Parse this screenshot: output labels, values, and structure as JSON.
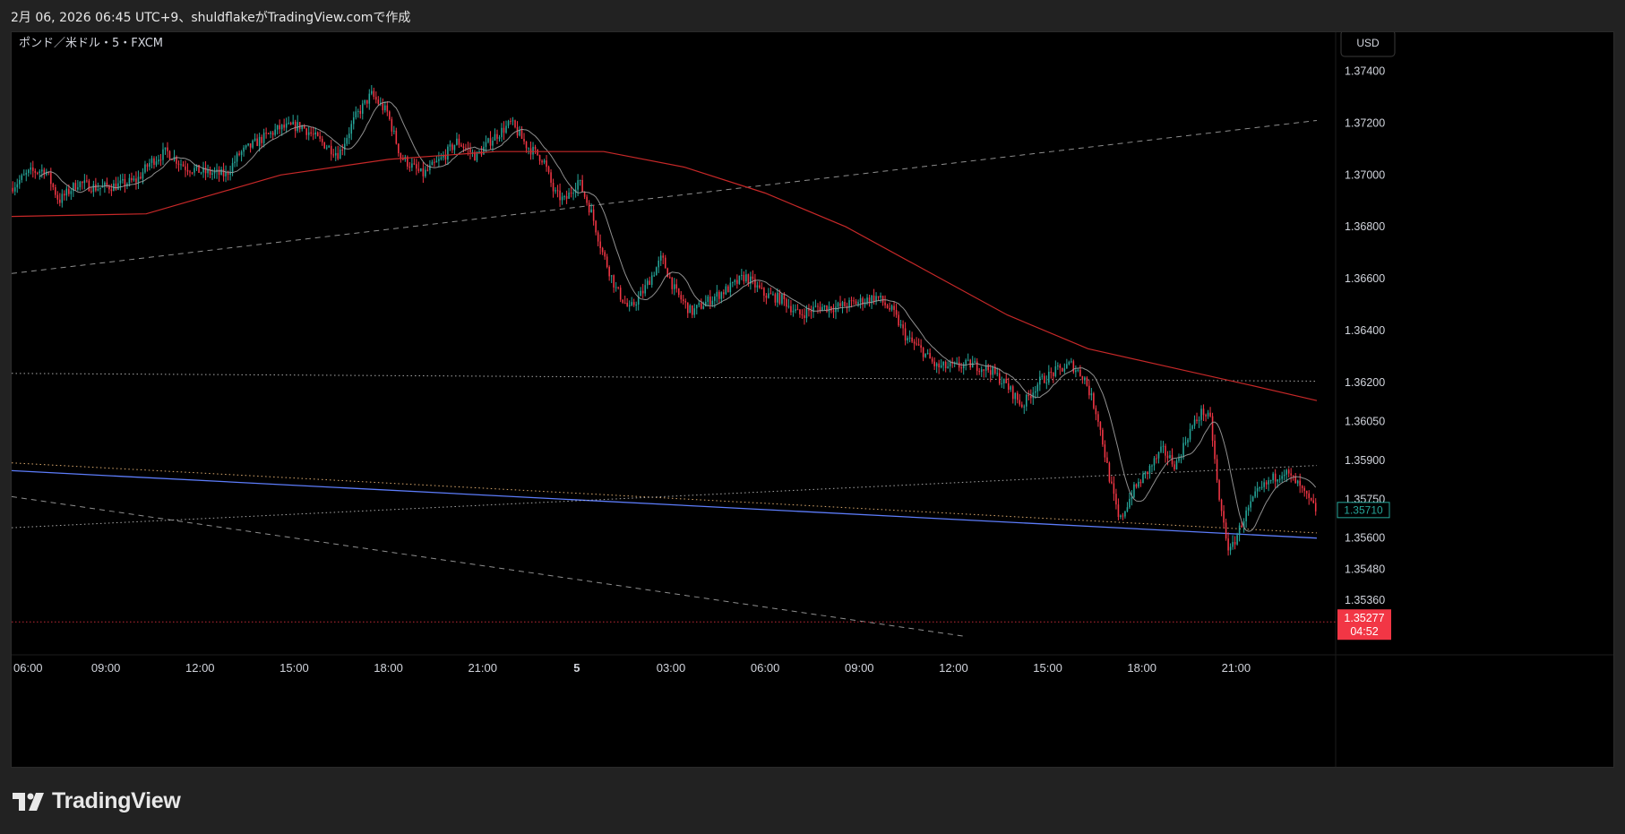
{
  "caption": "2月 06, 2026 06:45 UTC+9、shuldflakeがTradingView.comで作成",
  "footer": {
    "brand": "TradingView"
  },
  "colors": {
    "up": "#26a69a",
    "down": "#f23645",
    "ma_slow": "#c62828",
    "ma_fast": "#9e9e9e",
    "trend_blue": "#5c7cfa",
    "dashed": "#bdbdbd"
  },
  "chart_data": {
    "type": "candlestick",
    "title": "ポンド／米ドル・5・FXCM",
    "currency_button": "USD",
    "y_ticks": [
      "1.37400",
      "1.37200",
      "1.37000",
      "1.36800",
      "1.36600",
      "1.36400",
      "1.36200",
      "1.36050",
      "1.35900",
      "1.35750",
      "1.35600",
      "1.35480",
      "1.35360"
    ],
    "x_ticks": [
      "06:00",
      "09:00",
      "12:00",
      "15:00",
      "18:00",
      "21:00",
      "5",
      "03:00",
      "06:00",
      "09:00",
      "12:00",
      "15:00",
      "18:00",
      "21:00"
    ],
    "ylim": [
      1.3515,
      1.3755
    ],
    "last_price": {
      "value": "1.35710"
    },
    "red_line": {
      "value": "1.35277",
      "countdown": "04:52"
    },
    "close_path": [
      [
        0,
        1.3695
      ],
      [
        0.7,
        1.3701
      ],
      [
        1.3,
        1.3702
      ],
      [
        1.8,
        1.369
      ],
      [
        2.5,
        1.3697
      ],
      [
        3.2,
        1.3695
      ],
      [
        4,
        1.3696
      ],
      [
        4.7,
        1.3698
      ],
      [
        5.2,
        1.3705
      ],
      [
        5.8,
        1.3709
      ],
      [
        6.5,
        1.3703
      ],
      [
        7.2,
        1.3701
      ],
      [
        8,
        1.37
      ],
      [
        8.5,
        1.3708
      ],
      [
        9.2,
        1.3713
      ],
      [
        10,
        1.3718
      ],
      [
        10.8,
        1.3719
      ],
      [
        11.5,
        1.3713
      ],
      [
        12.2,
        1.3708
      ],
      [
        12.8,
        1.3722
      ],
      [
        13.4,
        1.3731
      ],
      [
        14,
        1.3724
      ],
      [
        14.5,
        1.3707
      ],
      [
        15.3,
        1.37
      ],
      [
        16,
        1.3706
      ],
      [
        16.6,
        1.3713
      ],
      [
        17.3,
        1.3707
      ],
      [
        17.9,
        1.3714
      ],
      [
        18.6,
        1.372
      ],
      [
        19.2,
        1.3711
      ],
      [
        19.8,
        1.3706
      ],
      [
        20.2,
        1.3693
      ],
      [
        20.6,
        1.369
      ],
      [
        21.1,
        1.3698
      ],
      [
        21.6,
        1.3685
      ],
      [
        22,
        1.367
      ],
      [
        22.5,
        1.3656
      ],
      [
        23,
        1.3648
      ],
      [
        23.5,
        1.3655
      ],
      [
        24.2,
        1.3668
      ],
      [
        24.7,
        1.3655
      ],
      [
        25.3,
        1.3647
      ],
      [
        26,
        1.3652
      ],
      [
        26.8,
        1.3657
      ],
      [
        27.3,
        1.3661
      ],
      [
        28,
        1.3654
      ],
      [
        28.7,
        1.3652
      ],
      [
        29.3,
        1.3646
      ],
      [
        30,
        1.3649
      ],
      [
        30.7,
        1.3649
      ],
      [
        31.5,
        1.3651
      ],
      [
        32.2,
        1.3653
      ],
      [
        32.8,
        1.3647
      ],
      [
        33.3,
        1.3637
      ],
      [
        33.9,
        1.3632
      ],
      [
        34.4,
        1.3626
      ],
      [
        35,
        1.3626
      ],
      [
        35.7,
        1.3627
      ],
      [
        36.4,
        1.3625
      ],
      [
        37,
        1.3619
      ],
      [
        37.6,
        1.3611
      ],
      [
        38.2,
        1.362
      ],
      [
        38.8,
        1.3624
      ],
      [
        39.4,
        1.3627
      ],
      [
        39.9,
        1.3622
      ],
      [
        40.4,
        1.3607
      ],
      [
        40.8,
        1.3585
      ],
      [
        41.2,
        1.3566
      ],
      [
        41.7,
        1.3578
      ],
      [
        42.2,
        1.3585
      ],
      [
        42.8,
        1.3594
      ],
      [
        43.3,
        1.3588
      ],
      [
        43.8,
        1.3601
      ],
      [
        44.3,
        1.3609
      ],
      [
        44.6,
        1.3605
      ],
      [
        44.9,
        1.3575
      ],
      [
        45.3,
        1.3554
      ],
      [
        45.8,
        1.3567
      ],
      [
        46.3,
        1.3577
      ],
      [
        46.8,
        1.3582
      ],
      [
        47.3,
        1.3586
      ],
      [
        47.8,
        1.3581
      ],
      [
        48.2,
        1.3575
      ],
      [
        48.5,
        1.3571
      ]
    ],
    "ma_slow": [
      [
        0,
        1.3684
      ],
      [
        5,
        1.3685
      ],
      [
        10,
        1.37
      ],
      [
        14,
        1.3706
      ],
      [
        18,
        1.3709
      ],
      [
        22,
        1.3709
      ],
      [
        25,
        1.3703
      ],
      [
        28,
        1.3693
      ],
      [
        31,
        1.368
      ],
      [
        34,
        1.3663
      ],
      [
        37,
        1.3646
      ],
      [
        40,
        1.3633
      ],
      [
        43,
        1.3626
      ],
      [
        46,
        1.3619
      ],
      [
        48.5,
        1.3613
      ]
    ],
    "trend_lines": [
      {
        "kind": "dashed",
        "from": [
          0,
          1.3662
        ],
        "to": [
          48.5,
          1.3721
        ]
      },
      {
        "kind": "dashed",
        "from": [
          0,
          1.3576
        ],
        "to": [
          35.5,
          1.3522
        ]
      },
      {
        "kind": "solid_blue",
        "from": [
          0,
          1.3586
        ],
        "to": [
          48.5,
          1.356
        ]
      },
      {
        "kind": "dotted_orange",
        "from": [
          0,
          1.3589
        ],
        "to": [
          48.5,
          1.3562
        ]
      },
      {
        "kind": "dotted_white",
        "from": [
          0,
          1.3564
        ],
        "to": [
          48.5,
          1.3588
        ]
      },
      {
        "kind": "dotted_white",
        "from": [
          0,
          1.36235
        ],
        "to": [
          48.5,
          1.36205
        ]
      }
    ]
  }
}
